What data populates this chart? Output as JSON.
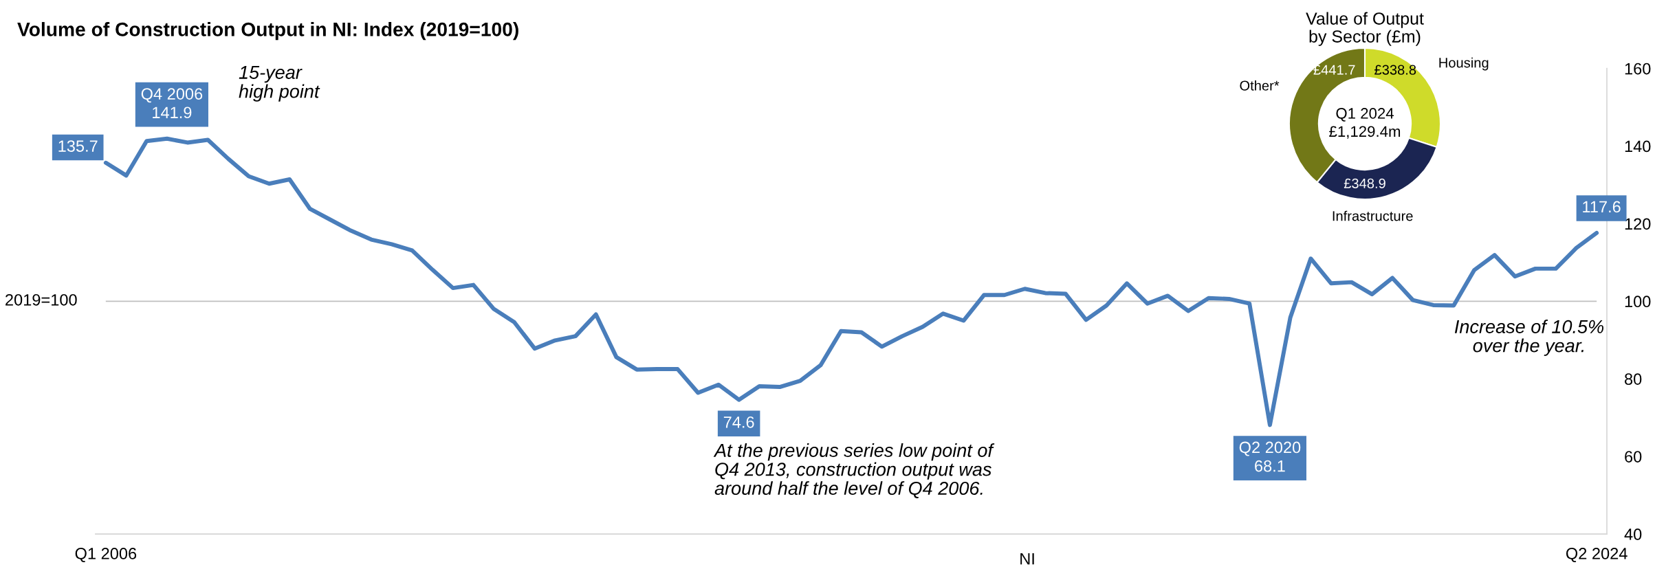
{
  "chart_data": [
    {
      "type": "line",
      "title": "Volume of Construction Output in NI: Index (2019=100)",
      "xlabel": "NI",
      "categories": [
        "Q1 2006",
        null,
        null,
        null,
        null,
        null,
        null,
        null,
        null,
        null,
        null,
        null,
        null,
        null,
        null,
        null,
        null,
        null,
        null,
        null,
        null,
        null,
        null,
        null,
        null,
        null,
        null,
        null,
        null,
        null,
        null,
        null,
        null,
        null,
        null,
        null,
        null,
        null,
        null,
        null,
        null,
        null,
        null,
        null,
        null,
        null,
        null,
        null,
        null,
        null,
        null,
        null,
        null,
        null,
        null,
        null,
        null,
        null,
        null,
        null,
        null,
        null,
        null,
        null,
        null,
        null,
        null,
        null,
        null,
        null,
        null,
        null,
        null,
        "Q2 2024"
      ],
      "series": [
        {
          "color": "#4a7ebb",
          "values": [
            135.7,
            132.4,
            141.3,
            141.9,
            140.9,
            141.6,
            136.7,
            132.2,
            130.3,
            131.4,
            123.8,
            121.0,
            118.2,
            115.9,
            114.7,
            113.1,
            108.1,
            103.4,
            104.2,
            98.0,
            94.6,
            87.8,
            89.9,
            91.0,
            96.6,
            85.6,
            82.4,
            82.5,
            82.5,
            76.4,
            78.5,
            74.6,
            78.1,
            77.9,
            79.5,
            83.5,
            92.3,
            92.0,
            88.3,
            91.0,
            93.4,
            96.8,
            95.0,
            101.6,
            101.6,
            103.2,
            102.1,
            101.9,
            95.2,
            98.9,
            104.6,
            99.4,
            101.4,
            97.5,
            100.8,
            100.6,
            99.4,
            68.1,
            95.8,
            111.0,
            104.6,
            104.9,
            101.8,
            106.0,
            100.3,
            99.0,
            98.9,
            108.0,
            111.9,
            106.4,
            108.4,
            108.4,
            113.7,
            117.6
          ],
          "value_labels": [
            "135.7",
            null,
            null,
            "Q4 2006\n141.9",
            null,
            null,
            null,
            null,
            null,
            null,
            null,
            null,
            null,
            null,
            null,
            null,
            null,
            null,
            null,
            null,
            null,
            null,
            null,
            null,
            null,
            null,
            null,
            null,
            null,
            null,
            null,
            "74.6",
            null,
            null,
            null,
            null,
            null,
            null,
            null,
            null,
            null,
            null,
            null,
            null,
            null,
            null,
            null,
            null,
            null,
            null,
            null,
            null,
            null,
            null,
            null,
            null,
            null,
            "Q2 2020\n68.1",
            null,
            null,
            null,
            null,
            null,
            null,
            null,
            null,
            null,
            null,
            null,
            null,
            null,
            null,
            null,
            "117.6"
          ]
        }
      ],
      "ylim": [
        40,
        160
      ],
      "yticks": [
        40,
        60,
        80,
        100,
        120,
        140,
        160
      ],
      "ref_lines": [
        {
          "axis": "y",
          "value": 100,
          "label": "2019=100",
          "color": "#bfbfbf"
        }
      ],
      "annotations": [
        "15-year\nhigh point",
        "At the previous series low point of\nQ4 2013, construction output was\naround half the level of Q4 2006.",
        "Increase of 10.5%\nover the year."
      ]
    },
    {
      "type": "donut",
      "title": "Value of Output\nby Sector (£m)",
      "categories": [
        "Housing",
        "Infrastructure",
        "Other*"
      ],
      "values": [
        338.8,
        348.9,
        441.7
      ],
      "colors": [
        "#cfdb2a",
        "#1b2552",
        "#727817"
      ],
      "value_labels": [
        "£338.8",
        "£348.9",
        "£441.7"
      ],
      "annotations": [
        "Q1 2024\n£1,129.4m"
      ]
    }
  ]
}
